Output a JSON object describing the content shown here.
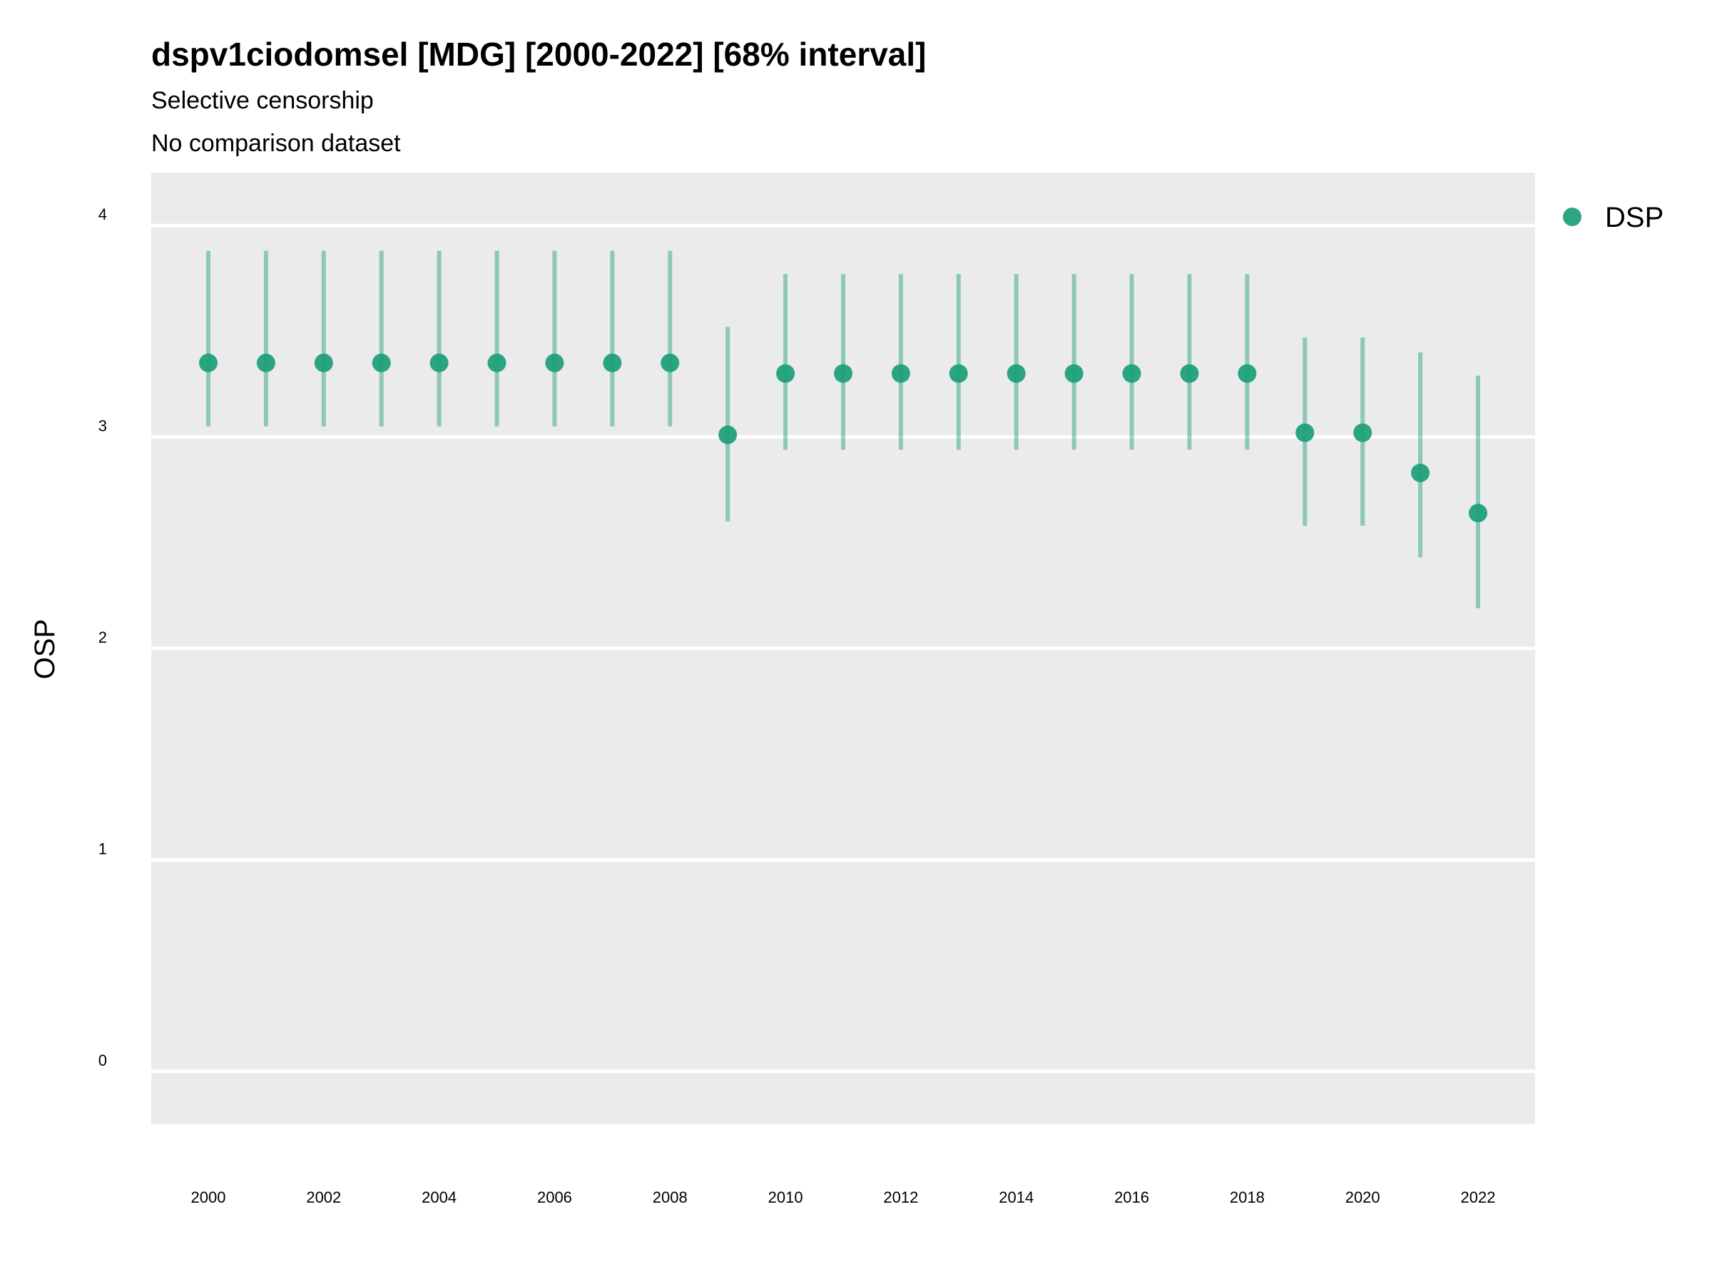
{
  "chart_data": {
    "type": "scatter",
    "title": "dspv1ciodomsel [MDG] [2000-2022] [68% interval]",
    "subtitle_lines": [
      "Selective censorship",
      "No comparison dataset"
    ],
    "xlabel": "",
    "ylabel": "OSP",
    "ylim": [
      -0.25,
      4.25
    ],
    "y_ticks": [
      0,
      1,
      2,
      3,
      4
    ],
    "x_tick_labels": [
      "2000",
      "2002",
      "2004",
      "2006",
      "2008",
      "2010",
      "2012",
      "2014",
      "2016",
      "2018",
      "2020",
      "2022"
    ],
    "grid": true,
    "legend_position": "top-right",
    "series": [
      {
        "name": "DSP",
        "color": "#1a9e77",
        "x": [
          2000,
          2001,
          2002,
          2003,
          2004,
          2005,
          2006,
          2007,
          2008,
          2009,
          2010,
          2011,
          2012,
          2013,
          2014,
          2015,
          2016,
          2017,
          2018,
          2019,
          2020,
          2021,
          2022
        ],
        "values": [
          3.35,
          3.35,
          3.35,
          3.35,
          3.35,
          3.35,
          3.35,
          3.35,
          3.35,
          3.01,
          3.3,
          3.3,
          3.3,
          3.3,
          3.3,
          3.3,
          3.3,
          3.3,
          3.3,
          3.02,
          3.02,
          2.83,
          2.64
        ],
        "lower": [
          3.05,
          3.05,
          3.05,
          3.05,
          3.05,
          3.05,
          3.05,
          3.05,
          3.05,
          2.6,
          2.94,
          2.94,
          2.94,
          2.94,
          2.94,
          2.94,
          2.94,
          2.94,
          2.94,
          2.58,
          2.58,
          2.43,
          2.19
        ],
        "upper": [
          3.88,
          3.88,
          3.88,
          3.88,
          3.88,
          3.88,
          3.88,
          3.88,
          3.88,
          3.52,
          3.77,
          3.77,
          3.77,
          3.77,
          3.77,
          3.77,
          3.77,
          3.77,
          3.77,
          3.47,
          3.47,
          3.4,
          3.29
        ]
      }
    ]
  }
}
